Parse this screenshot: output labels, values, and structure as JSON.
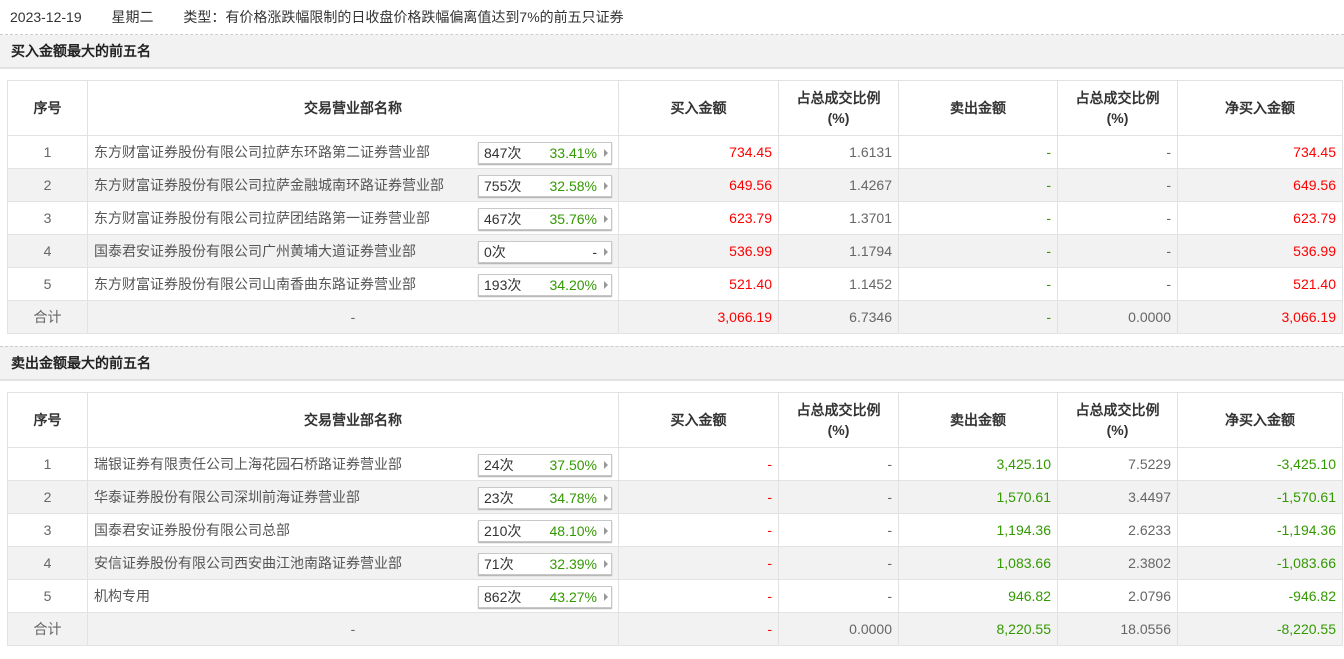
{
  "header": {
    "date": "2023-12-19",
    "weekday": "星期二",
    "type": "类型：有价格涨跌幅限制的日收盘价格跌幅偏离值达到7%的前五只证券"
  },
  "columns": [
    "序号",
    "交易营业部名称",
    "买入金额",
    "占总成交比例\n(%)",
    "卖出金额",
    "占总成交比例\n(%)",
    "净买入金额"
  ],
  "colors": {
    "up": "#ff0000",
    "down": "#339900",
    "neutral": "#666666"
  },
  "sections": [
    {
      "title": "买入金额最大的前五名",
      "rows": [
        {
          "no": "1",
          "name": "东方财富证券股份有限公司拉萨东环路第二证券营业部",
          "count": "847次",
          "pct": "33.41%",
          "buy": "734.45",
          "buy_ratio": "1.6131",
          "sell": "-",
          "sell_ratio": "-",
          "net": "734.45"
        },
        {
          "no": "2",
          "name": "东方财富证券股份有限公司拉萨金融城南环路证券营业部",
          "count": "755次",
          "pct": "32.58%",
          "buy": "649.56",
          "buy_ratio": "1.4267",
          "sell": "-",
          "sell_ratio": "-",
          "net": "649.56"
        },
        {
          "no": "3",
          "name": "东方财富证券股份有限公司拉萨团结路第一证券营业部",
          "count": "467次",
          "pct": "35.76%",
          "buy": "623.79",
          "buy_ratio": "1.3701",
          "sell": "-",
          "sell_ratio": "-",
          "net": "623.79"
        },
        {
          "no": "4",
          "name": "国泰君安证券股份有限公司广州黄埔大道证券营业部",
          "count": "0次",
          "pct": "-",
          "buy": "536.99",
          "buy_ratio": "1.1794",
          "sell": "-",
          "sell_ratio": "-",
          "net": "536.99"
        },
        {
          "no": "5",
          "name": "东方财富证券股份有限公司山南香曲东路证券营业部",
          "count": "193次",
          "pct": "34.20%",
          "buy": "521.40",
          "buy_ratio": "1.1452",
          "sell": "-",
          "sell_ratio": "-",
          "net": "521.40"
        }
      ],
      "total": {
        "label": "合计",
        "name": "-",
        "buy": "3,066.19",
        "buy_ratio": "6.7346",
        "sell": "-",
        "sell_ratio": "0.0000",
        "net": "3,066.19"
      }
    },
    {
      "title": "卖出金额最大的前五名",
      "rows": [
        {
          "no": "1",
          "name": "瑞银证券有限责任公司上海花园石桥路证券营业部",
          "count": "24次",
          "pct": "37.50%",
          "buy": "-",
          "buy_ratio": "-",
          "sell": "3,425.10",
          "sell_ratio": "7.5229",
          "net": "-3,425.10"
        },
        {
          "no": "2",
          "name": "华泰证券股份有限公司深圳前海证券营业部",
          "count": "23次",
          "pct": "34.78%",
          "buy": "-",
          "buy_ratio": "-",
          "sell": "1,570.61",
          "sell_ratio": "3.4497",
          "net": "-1,570.61"
        },
        {
          "no": "3",
          "name": "国泰君安证券股份有限公司总部",
          "count": "210次",
          "pct": "48.10%",
          "buy": "-",
          "buy_ratio": "-",
          "sell": "1,194.36",
          "sell_ratio": "2.6233",
          "net": "-1,194.36"
        },
        {
          "no": "4",
          "name": "安信证券股份有限公司西安曲江池南路证券营业部",
          "count": "71次",
          "pct": "32.39%",
          "buy": "-",
          "buy_ratio": "-",
          "sell": "1,083.66",
          "sell_ratio": "2.3802",
          "net": "-1,083.66"
        },
        {
          "no": "5",
          "name": "机构专用",
          "count": "862次",
          "pct": "43.27%",
          "buy": "-",
          "buy_ratio": "-",
          "sell": "946.82",
          "sell_ratio": "2.0796",
          "net": "-946.82"
        }
      ],
      "total": {
        "label": "合计",
        "name": "-",
        "buy": "-",
        "buy_ratio": "0.0000",
        "sell": "8,220.55",
        "sell_ratio": "18.0556",
        "net": "-8,220.55"
      }
    }
  ]
}
